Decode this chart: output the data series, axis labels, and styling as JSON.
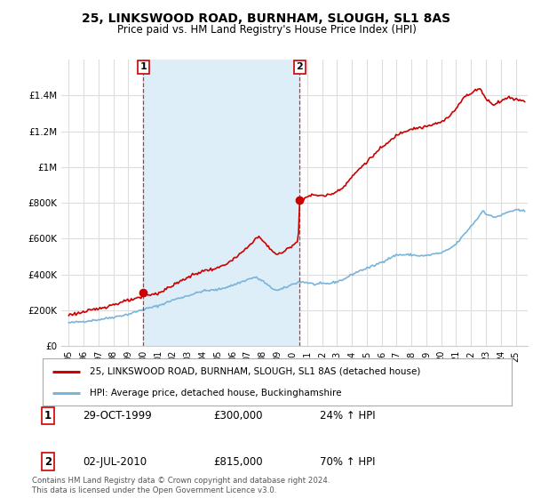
{
  "title": "25, LINKSWOOD ROAD, BURNHAM, SLOUGH, SL1 8AS",
  "subtitle": "Price paid vs. HM Land Registry's House Price Index (HPI)",
  "hpi_label": "HPI: Average price, detached house, Buckinghamshire",
  "property_label": "25, LINKSWOOD ROAD, BURNHAM, SLOUGH, SL1 8AS (detached house)",
  "hpi_color": "#7ab4d8",
  "property_color": "#cc0000",
  "shade_color": "#ddeef8",
  "background_color": "#ffffff",
  "plot_bg_color": "#ffffff",
  "grid_color": "#dddddd",
  "ylim": [
    0,
    1600000
  ],
  "yticks": [
    0,
    200000,
    400000,
    600000,
    800000,
    1000000,
    1200000,
    1400000
  ],
  "ytick_labels": [
    "£0",
    "£200K",
    "£400K",
    "£600K",
    "£800K",
    "£1M",
    "£1.2M",
    "£1.4M"
  ],
  "sale1": {
    "date": "29-OCT-1999",
    "price": 300000,
    "pct": "24%",
    "direction": "↑",
    "x": 2000.0
  },
  "sale2": {
    "date": "02-JUL-2010",
    "price": 815000,
    "pct": "70%",
    "direction": "↑",
    "x": 2010.5
  },
  "footnote": "Contains HM Land Registry data © Crown copyright and database right 2024.\nThis data is licensed under the Open Government Licence v3.0.",
  "xtick_years": [
    1995,
    1996,
    1997,
    1998,
    1999,
    2000,
    2001,
    2002,
    2003,
    2004,
    2005,
    2006,
    2007,
    2008,
    2009,
    2010,
    2011,
    2012,
    2013,
    2014,
    2015,
    2016,
    2017,
    2018,
    2019,
    2020,
    2021,
    2022,
    2023,
    2024,
    2025
  ],
  "xlim": [
    1994.5,
    2025.8
  ]
}
